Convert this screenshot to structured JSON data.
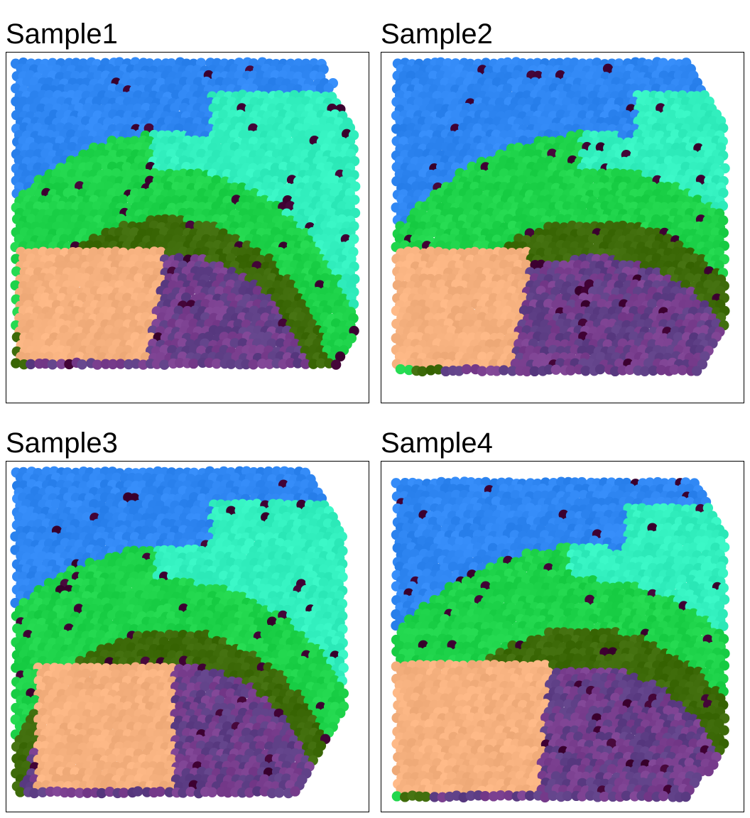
{
  "chart_data": [
    {
      "type": "scatter",
      "title": "Sample1",
      "grid": false,
      "axes_visible": false,
      "clusters": [
        {
          "id": "deep_maroon",
          "color": "#3f0033"
        },
        {
          "id": "dark_violet",
          "color": "#5e3f86"
        },
        {
          "id": "purple",
          "color": "#7a3f8f"
        },
        {
          "id": "peach",
          "color": "#f6b17f"
        },
        {
          "id": "olive",
          "color": "#3e6b0a"
        },
        {
          "id": "green",
          "color": "#1ed34a"
        },
        {
          "id": "aqua",
          "color": "#33f0bf"
        },
        {
          "id": "blue",
          "color": "#2f86f2"
        }
      ]
    },
    {
      "type": "scatter",
      "title": "Sample2",
      "grid": false,
      "axes_visible": false,
      "clusters": [
        {
          "id": "deep_maroon",
          "color": "#3f0033"
        },
        {
          "id": "dark_violet",
          "color": "#5e3f86"
        },
        {
          "id": "purple",
          "color": "#7a3f8f"
        },
        {
          "id": "peach",
          "color": "#f6b17f"
        },
        {
          "id": "olive",
          "color": "#3e6b0a"
        },
        {
          "id": "green",
          "color": "#1ed34a"
        },
        {
          "id": "aqua",
          "color": "#33f0bf"
        },
        {
          "id": "blue",
          "color": "#2f86f2"
        }
      ]
    },
    {
      "type": "scatter",
      "title": "Sample3",
      "grid": false,
      "axes_visible": false,
      "clusters": [
        {
          "id": "deep_maroon",
          "color": "#3f0033"
        },
        {
          "id": "dark_violet",
          "color": "#5e3f86"
        },
        {
          "id": "purple",
          "color": "#7a3f8f"
        },
        {
          "id": "peach",
          "color": "#f6b17f"
        },
        {
          "id": "olive",
          "color": "#3e6b0a"
        },
        {
          "id": "green",
          "color": "#1ed34a"
        },
        {
          "id": "aqua",
          "color": "#33f0bf"
        },
        {
          "id": "blue",
          "color": "#2f86f2"
        }
      ]
    },
    {
      "type": "scatter",
      "title": "Sample4",
      "grid": false,
      "axes_visible": false,
      "clusters": [
        {
          "id": "deep_maroon",
          "color": "#3f0033"
        },
        {
          "id": "dark_violet",
          "color": "#5e3f86"
        },
        {
          "id": "purple",
          "color": "#7a3f8f"
        },
        {
          "id": "peach",
          "color": "#f6b17f"
        },
        {
          "id": "olive",
          "color": "#3e6b0a"
        },
        {
          "id": "green",
          "color": "#1ed34a"
        },
        {
          "id": "aqua",
          "color": "#33f0bf"
        },
        {
          "id": "blue",
          "color": "#2f86f2"
        }
      ]
    }
  ]
}
